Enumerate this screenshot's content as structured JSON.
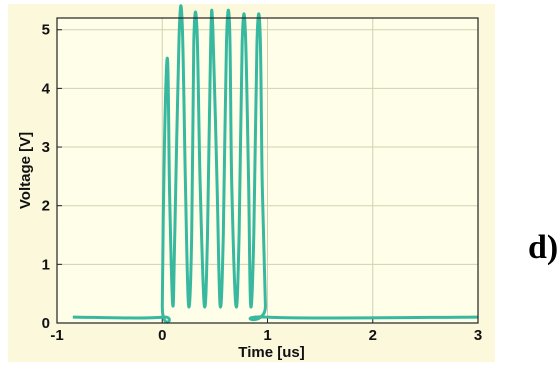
{
  "panel_label": "d)",
  "colors": {
    "background": "#fbf8dc",
    "plot_background": "#fefee9",
    "grid": "#d2d0b0",
    "series": "#38b89f",
    "axis": "#222222"
  },
  "chart_data": {
    "type": "line",
    "title": "",
    "xlabel": "Time [us]",
    "ylabel": "Voltage [V]",
    "xlim": [
      -1,
      3
    ],
    "ylim": [
      0,
      5.2
    ],
    "xticks": [
      -1,
      0,
      1,
      2,
      3
    ],
    "yticks": [
      0,
      1,
      2,
      3,
      4,
      5
    ],
    "grid": true,
    "legend": "none",
    "series": [
      {
        "x": [
          -0.85,
          0.0,
          0.0,
          0.02,
          0.05,
          0.07,
          0.1,
          0.12,
          0.16,
          0.19,
          0.22,
          0.25,
          0.28,
          0.3,
          0.33,
          0.36,
          0.4,
          0.43,
          0.46,
          0.48,
          0.52,
          0.55,
          0.58,
          0.61,
          0.64,
          0.66,
          0.7,
          0.73,
          0.76,
          0.79,
          0.82,
          0.84,
          0.87,
          0.9,
          0.93,
          0.95,
          0.98,
          1.0,
          3.0
        ],
        "y": [
          0.1,
          0.1,
          0.3,
          3.0,
          4.5,
          2.2,
          0.3,
          1.6,
          4.9,
          5.1,
          2.4,
          0.3,
          1.5,
          4.8,
          5.0,
          2.4,
          0.3,
          1.5,
          4.8,
          5.05,
          2.4,
          0.3,
          1.5,
          4.8,
          5.05,
          2.4,
          0.3,
          1.5,
          4.8,
          4.95,
          2.4,
          0.3,
          1.5,
          4.8,
          4.95,
          2.4,
          0.3,
          0.1,
          0.1
        ]
      }
    ]
  }
}
